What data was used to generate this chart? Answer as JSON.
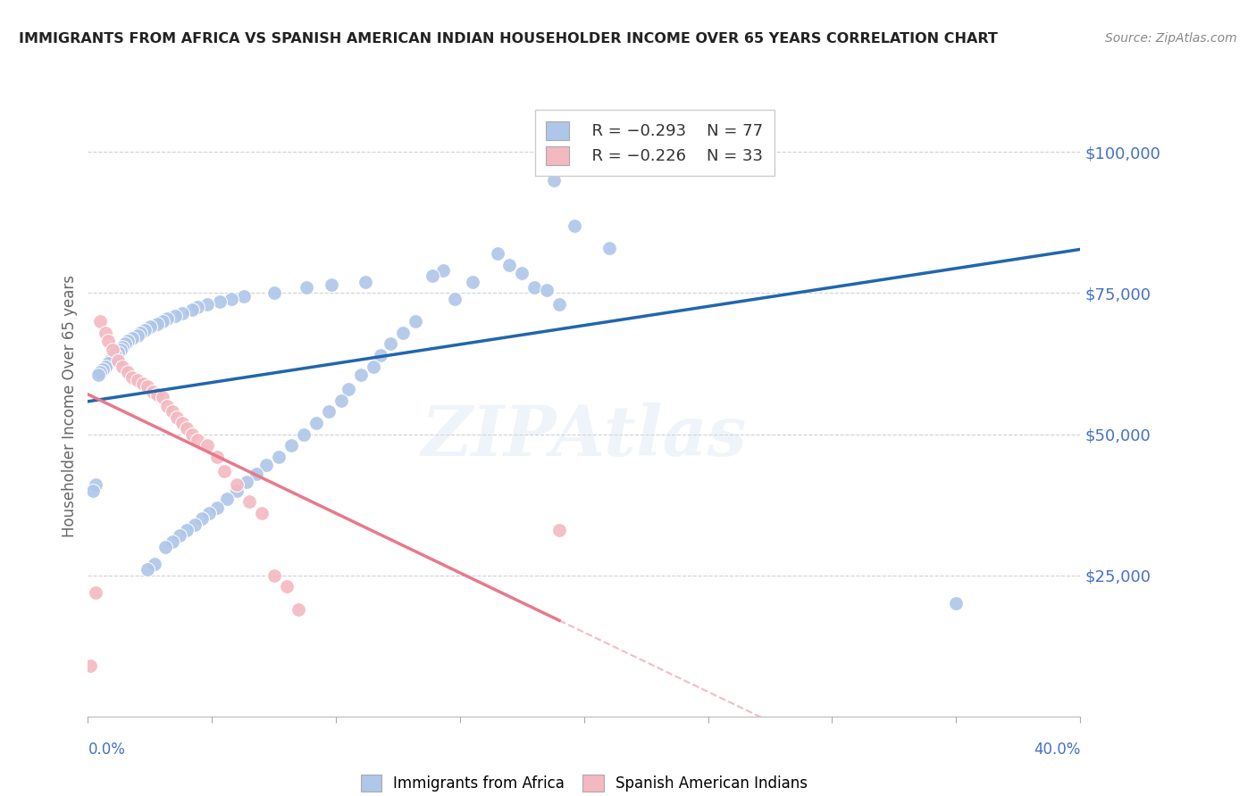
{
  "title": "IMMIGRANTS FROM AFRICA VS SPANISH AMERICAN INDIAN HOUSEHOLDER INCOME OVER 65 YEARS CORRELATION CHART",
  "source": "Source: ZipAtlas.com",
  "ylabel": "Householder Income Over 65 years",
  "legend_blue_r": "R = -0.293",
  "legend_blue_n": "N = 77",
  "legend_pink_r": "R = -0.226",
  "legend_pink_n": "N = 33",
  "blue_color": "#aec6e8",
  "pink_color": "#f4b8c1",
  "blue_line_color": "#2166ac",
  "pink_line_color": "#e8798a",
  "axis_color": "#4472c4",
  "grid_color": "#cccccc",
  "blue_scatter_x": [
    0.188,
    0.196,
    0.21,
    0.143,
    0.139,
    0.112,
    0.098,
    0.088,
    0.075,
    0.063,
    0.058,
    0.053,
    0.048,
    0.044,
    0.042,
    0.038,
    0.035,
    0.032,
    0.03,
    0.028,
    0.025,
    0.023,
    0.021,
    0.02,
    0.018,
    0.016,
    0.015,
    0.014,
    0.013,
    0.012,
    0.011,
    0.01,
    0.009,
    0.008,
    0.007,
    0.006,
    0.005,
    0.004,
    0.003,
    0.002,
    0.165,
    0.17,
    0.175,
    0.18,
    0.185,
    0.19,
    0.155,
    0.148,
    0.132,
    0.127,
    0.122,
    0.118,
    0.115,
    0.11,
    0.105,
    0.102,
    0.097,
    0.092,
    0.087,
    0.082,
    0.077,
    0.072,
    0.068,
    0.064,
    0.06,
    0.056,
    0.052,
    0.049,
    0.046,
    0.043,
    0.04,
    0.037,
    0.034,
    0.031,
    0.027,
    0.024,
    0.35
  ],
  "blue_scatter_y": [
    95000,
    87000,
    83000,
    79000,
    78000,
    77000,
    76500,
    76000,
    75000,
    74500,
    74000,
    73500,
    73000,
    72500,
    72000,
    71500,
    71000,
    70500,
    70000,
    69500,
    69000,
    68500,
    68000,
    67500,
    67000,
    66500,
    66000,
    65500,
    65000,
    64500,
    64000,
    63500,
    63000,
    62500,
    62000,
    61500,
    61000,
    60500,
    41000,
    40000,
    82000,
    80000,
    78500,
    76000,
    75500,
    73000,
    77000,
    74000,
    70000,
    68000,
    66000,
    64000,
    62000,
    60500,
    58000,
    56000,
    54000,
    52000,
    50000,
    48000,
    46000,
    44500,
    43000,
    41500,
    40000,
    38500,
    37000,
    36000,
    35000,
    34000,
    33000,
    32000,
    31000,
    30000,
    27000,
    26000,
    20000
  ],
  "pink_scatter_x": [
    0.005,
    0.007,
    0.008,
    0.01,
    0.012,
    0.014,
    0.016,
    0.018,
    0.02,
    0.022,
    0.024,
    0.026,
    0.028,
    0.03,
    0.032,
    0.034,
    0.036,
    0.038,
    0.04,
    0.042,
    0.044,
    0.048,
    0.052,
    0.055,
    0.06,
    0.065,
    0.07,
    0.075,
    0.08,
    0.085,
    0.19,
    0.003,
    0.001
  ],
  "pink_scatter_y": [
    70000,
    68000,
    66500,
    65000,
    63000,
    62000,
    61000,
    60000,
    59500,
    59000,
    58500,
    57500,
    57000,
    56500,
    55000,
    54000,
    53000,
    52000,
    51000,
    50000,
    49000,
    48000,
    46000,
    43500,
    41000,
    38000,
    36000,
    25000,
    23000,
    19000,
    33000,
    22000,
    9000
  ]
}
